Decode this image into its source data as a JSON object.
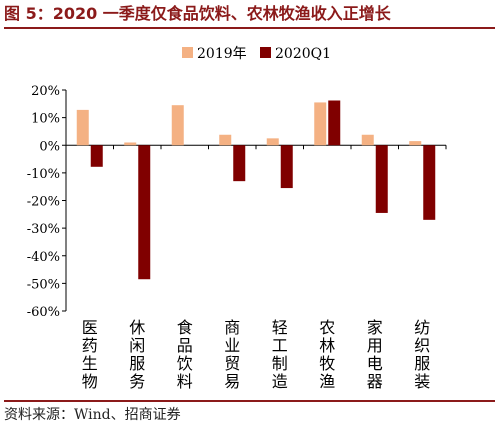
{
  "title": "图 5：2020 一季度仅食品饮料、农林牧渔收入正增长",
  "source": "资料来源：Wind、招商证券",
  "colors": {
    "accent": "#8b1a1a"
  },
  "chart_data": {
    "type": "bar",
    "categories": [
      "医药生物",
      "休闲服务",
      "食品饮料",
      "商业贸易",
      "轻工制造",
      "农林牧渔",
      "家用电器",
      "纺织服装"
    ],
    "series": [
      {
        "name": "2019年",
        "color": "#f4b183",
        "values": [
          12.8,
          1.0,
          14.5,
          3.8,
          2.5,
          15.5,
          3.8,
          1.5
        ]
      },
      {
        "name": "2020Q1",
        "color": "#800000",
        "values": [
          -7.8,
          -48.5,
          0.0,
          -13.0,
          -15.5,
          16.2,
          -24.5,
          -27.0
        ]
      }
    ],
    "ylim": [
      -60,
      20
    ],
    "yticks": [
      20,
      10,
      0,
      -10,
      -20,
      -30,
      -40,
      -50,
      -60
    ],
    "ytick_labels": [
      "20%",
      "10%",
      "0%",
      "-10%",
      "-20%",
      "-30%",
      "-40%",
      "-50%",
      "-60%"
    ],
    "legend_position": "top-center",
    "grid": false
  }
}
